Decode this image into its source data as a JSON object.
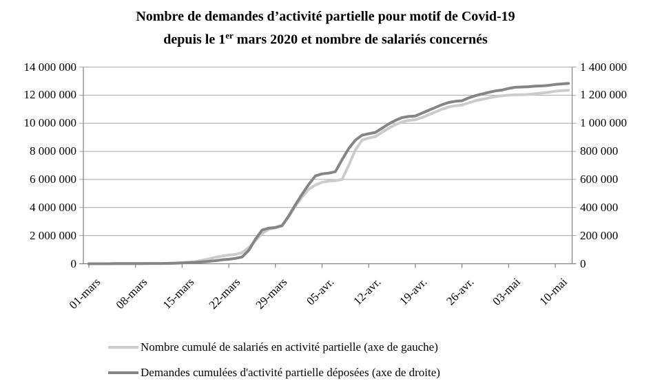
{
  "title": {
    "line1": "Nombre de demandes d’activité partielle pour motif de Covid-19",
    "line2_pre": "depuis le 1",
    "line2_sup": "er",
    "line2_post": " mars 2020 et nombre de salariés concernés"
  },
  "axes": {
    "left": {
      "max": 14000000,
      "ticks": [
        "14 000 000",
        "12 000 000",
        "10 000 000",
        "8 000 000",
        "6 000 000",
        "4 000 000",
        "2 000 000",
        "0"
      ]
    },
    "right": {
      "max": 1400000,
      "ticks": [
        "1 400 000",
        "1 200 000",
        "1 000 000",
        "800 000",
        "600 000",
        "400 000",
        "200 000",
        "0"
      ]
    }
  },
  "colors": {
    "grid": "#a6a6a6",
    "axis": "#808080",
    "text": "#000000",
    "background": "#ffffff"
  },
  "chart_data": {
    "type": "line",
    "title": "Nombre de demandes d'activité partielle pour motif de Covid-19 depuis le 1er mars 2020 et nombre de salariés concernés",
    "x_description": "daily cumulative values from 01-mars-2020 to 12-mai-2020",
    "x_tick_labels": [
      "01-mars",
      "08-mars",
      "15-mars",
      "22-mars",
      "29-mars",
      "05-avr.",
      "12-avr.",
      "19-avr.",
      "26-avr.",
      "03-mai",
      "10-mai"
    ],
    "axis_left": {
      "role": "salariés",
      "range": [
        0,
        14000000
      ],
      "tick_step": 2000000
    },
    "axis_right": {
      "role": "demandes",
      "range": [
        0,
        1400000
      ],
      "tick_step": 200000
    },
    "grid": "horizontal",
    "legend_position": "bottom",
    "series": [
      {
        "name": "Nombre cumulé de salariés en activité partielle (axe de gauche)",
        "axis": "left",
        "color": "#cccccc",
        "values": [
          0,
          0,
          0,
          0,
          10000,
          10000,
          10000,
          10000,
          10000,
          20000,
          20000,
          20000,
          30000,
          50000,
          80000,
          110000,
          150000,
          250000,
          350000,
          460000,
          550000,
          620000,
          660000,
          800000,
          1150000,
          1650000,
          2150000,
          2450000,
          2550000,
          2700000,
          3350000,
          4100000,
          4750000,
          5300000,
          5600000,
          5800000,
          5880000,
          5920000,
          6000000,
          7000000,
          8100000,
          8800000,
          8950000,
          9050000,
          9350000,
          9650000,
          9900000,
          10100000,
          10200000,
          10250000,
          10400000,
          10600000,
          10800000,
          11000000,
          11150000,
          11250000,
          11300000,
          11450000,
          11600000,
          11700000,
          11800000,
          11900000,
          11950000,
          12000000,
          12020000,
          12030000,
          12050000,
          12100000,
          12150000,
          12200000,
          12280000,
          12320000,
          12350000
        ]
      },
      {
        "name": "Demandes cumulées d'activité partielle déposées (axe de droite)",
        "axis": "right",
        "color": "#858585",
        "values": [
          0,
          0,
          0,
          0,
          1000,
          1000,
          1000,
          1000,
          1000,
          2000,
          2000,
          2000,
          3000,
          4000,
          6000,
          8000,
          10000,
          13000,
          17000,
          22000,
          28000,
          32000,
          38000,
          48000,
          95000,
          175000,
          240000,
          253000,
          258000,
          272000,
          340000,
          420000,
          495000,
          565000,
          625000,
          640000,
          645000,
          655000,
          740000,
          820000,
          880000,
          915000,
          925000,
          935000,
          965000,
          995000,
          1020000,
          1040000,
          1048000,
          1052000,
          1072000,
          1092000,
          1112000,
          1132000,
          1148000,
          1156000,
          1160000,
          1180000,
          1196000,
          1208000,
          1220000,
          1230000,
          1236000,
          1248000,
          1256000,
          1258000,
          1260000,
          1264000,
          1266000,
          1270000,
          1276000,
          1280000,
          1284000
        ]
      }
    ]
  }
}
